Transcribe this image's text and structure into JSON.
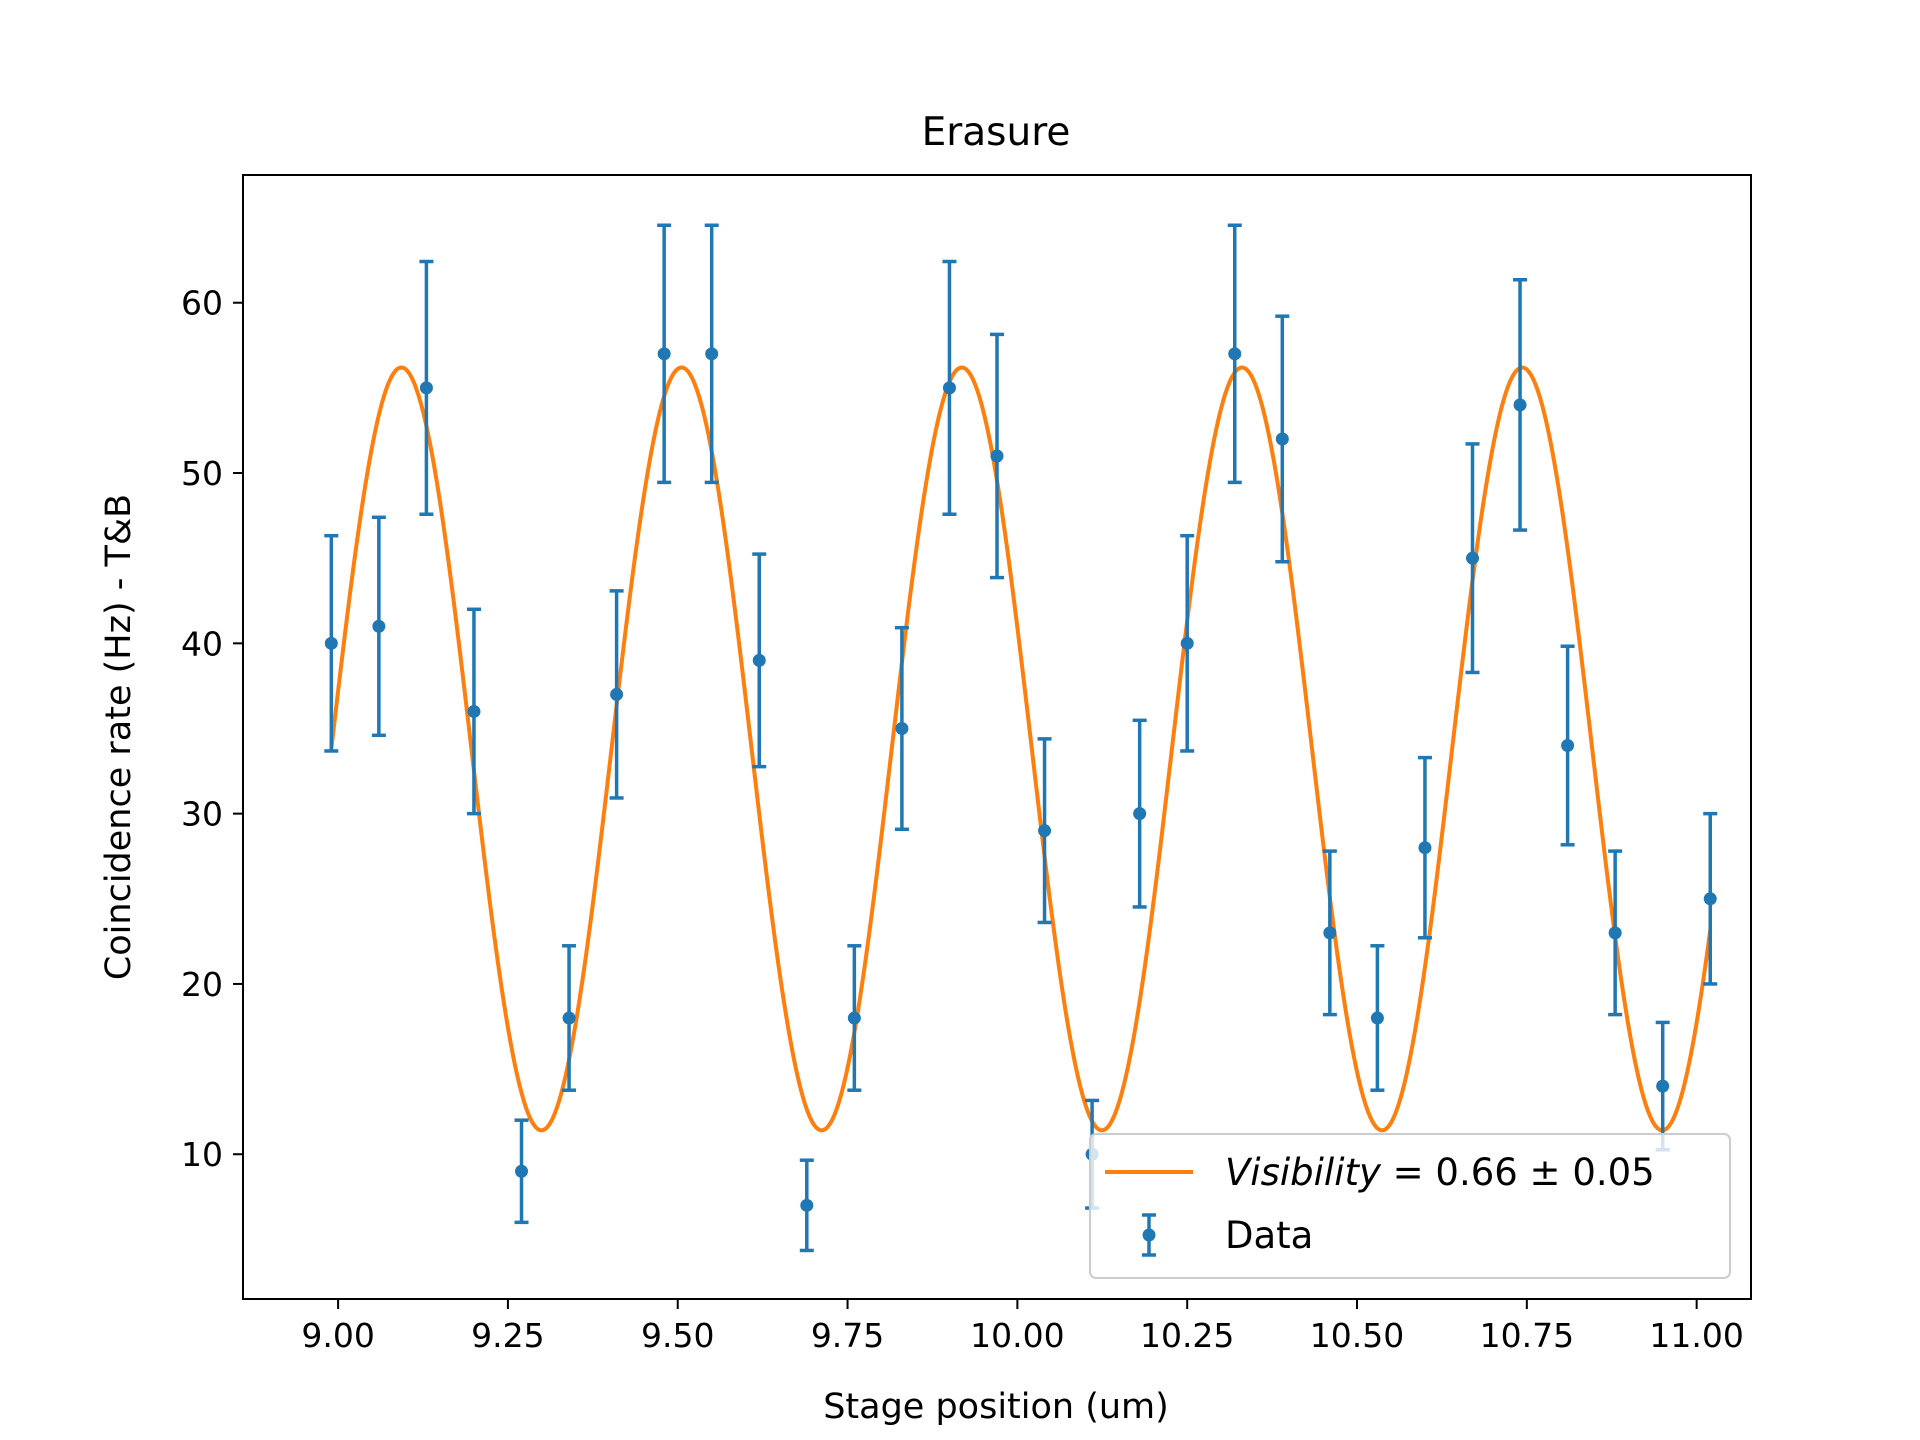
{
  "chart_data": {
    "type": "scatter",
    "title": "Erasure",
    "xlabel": "Stage position (um)",
    "ylabel": "Coincidence rate (Hz) - T&B",
    "xlim": [
      8.86,
      11.08
    ],
    "ylim": [
      1.5,
      67.5
    ],
    "xticks": [
      9.0,
      9.25,
      9.5,
      9.75,
      10.0,
      10.25,
      10.5,
      10.75,
      11.0
    ],
    "xtick_labels": [
      "9.00",
      "9.25",
      "9.50",
      "9.75",
      "10.00",
      "10.25",
      "10.50",
      "10.75",
      "11.00"
    ],
    "yticks": [
      10,
      20,
      30,
      40,
      50,
      60
    ],
    "ytick_labels": [
      "10",
      "20",
      "30",
      "40",
      "50",
      "60"
    ],
    "grid": false,
    "legend_position": "lower-right",
    "series": [
      {
        "name": "Data",
        "kind": "errorbar",
        "color": "#1f77b4",
        "x": [
          8.99,
          9.06,
          9.13,
          9.2,
          9.27,
          9.34,
          9.41,
          9.48,
          9.55,
          9.62,
          9.69,
          9.76,
          9.83,
          9.9,
          9.97,
          10.04,
          10.11,
          10.18,
          10.25,
          10.32,
          10.39,
          10.46,
          10.53,
          10.6,
          10.67,
          10.74,
          10.81,
          10.88,
          10.95,
          11.02
        ],
        "y": [
          40,
          41,
          55,
          36,
          9,
          18,
          37,
          57,
          57,
          39,
          7,
          18,
          35,
          55,
          51,
          29,
          10,
          30,
          40,
          57,
          52,
          23,
          18,
          28,
          45,
          54,
          34,
          23,
          14,
          25
        ],
        "yerr": [
          6.32,
          6.4,
          7.42,
          6.0,
          3.0,
          4.24,
          6.08,
          7.55,
          7.55,
          6.24,
          2.65,
          4.24,
          5.92,
          7.42,
          7.14,
          5.39,
          3.16,
          5.48,
          6.32,
          7.55,
          7.21,
          4.8,
          4.24,
          5.29,
          6.71,
          7.35,
          5.83,
          4.8,
          3.74,
          5.0
        ]
      },
      {
        "name": "Visibility = 0.66 ± 0.05",
        "kind": "fit",
        "color": "#ff7f0e",
        "model": "A + B*sin(2*pi*(x - x0)/period)",
        "params": {
          "A": 33.8,
          "B": 22.4,
          "period": 0.4125,
          "x0": 8.99
        },
        "x_range": [
          8.99,
          11.02
        ]
      }
    ]
  },
  "legend": {
    "fit_label_italic": "Visibility",
    "fit_label_rest": " = 0.66 ± 0.05",
    "data_label": "Data"
  }
}
